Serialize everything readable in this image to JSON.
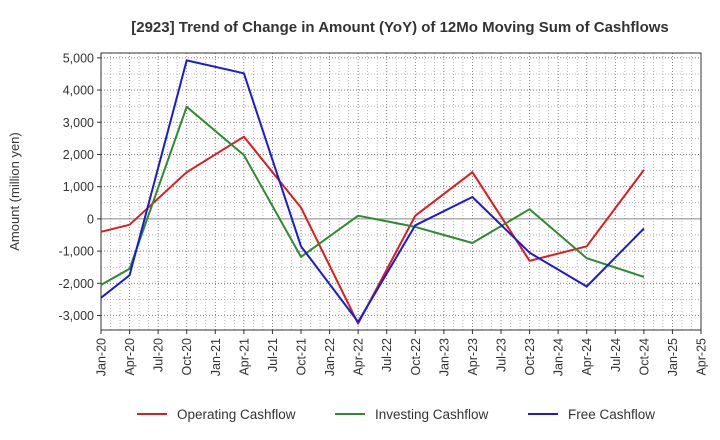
{
  "chart_data": {
    "type": "line",
    "title": "[2923]  Trend of Change in Amount (YoY) of 12Mo Moving Sum of Cashflows",
    "xlabel": "",
    "ylabel": "Amount (million yen)",
    "ylim": [
      -3450,
      5150
    ],
    "yticks": [
      5000,
      4000,
      3000,
      2000,
      1000,
      0,
      -1000,
      -2000,
      -3000
    ],
    "ytick_labels": [
      "5,000",
      "4,000",
      "3,000",
      "2,000",
      "1,000",
      "0",
      "-1,000",
      "-2,000",
      "-3,000"
    ],
    "categories": [
      "Jan-20",
      "Apr-20",
      "Jul-20",
      "Oct-20",
      "Jan-21",
      "Apr-21",
      "Jul-21",
      "Oct-21",
      "Jan-22",
      "Apr-22",
      "Jul-22",
      "Oct-22",
      "Jan-23",
      "Apr-23",
      "Jul-23",
      "Oct-23",
      "Jan-24",
      "Apr-24",
      "Jul-24",
      "Oct-24",
      "Jan-25",
      "Apr-25"
    ],
    "grid": true,
    "legend_position": "bottom",
    "series": [
      {
        "name": "Operating Cashflow",
        "color": "#e31a1c",
        "values": [
          -400,
          -180,
          null,
          1450,
          null,
          2550,
          null,
          350,
          null,
          -3250,
          null,
          100,
          null,
          1450,
          null,
          -1300,
          null,
          -850,
          null,
          1520,
          null,
          null
        ]
      },
      {
        "name": "Investing Cashflow",
        "color": "#2e8b2e",
        "values": [
          -2050,
          -1550,
          null,
          3480,
          null,
          1980,
          null,
          -1180,
          null,
          100,
          null,
          -250,
          null,
          -750,
          null,
          300,
          null,
          -1220,
          null,
          -1800,
          null,
          null
        ]
      },
      {
        "name": "Free Cashflow",
        "color": "#1a1adb",
        "values": [
          -2450,
          -1750,
          null,
          4920,
          null,
          4520,
          null,
          -850,
          null,
          -3200,
          null,
          -200,
          null,
          680,
          null,
          -1050,
          null,
          -2100,
          null,
          -300,
          null,
          null
        ]
      }
    ]
  }
}
